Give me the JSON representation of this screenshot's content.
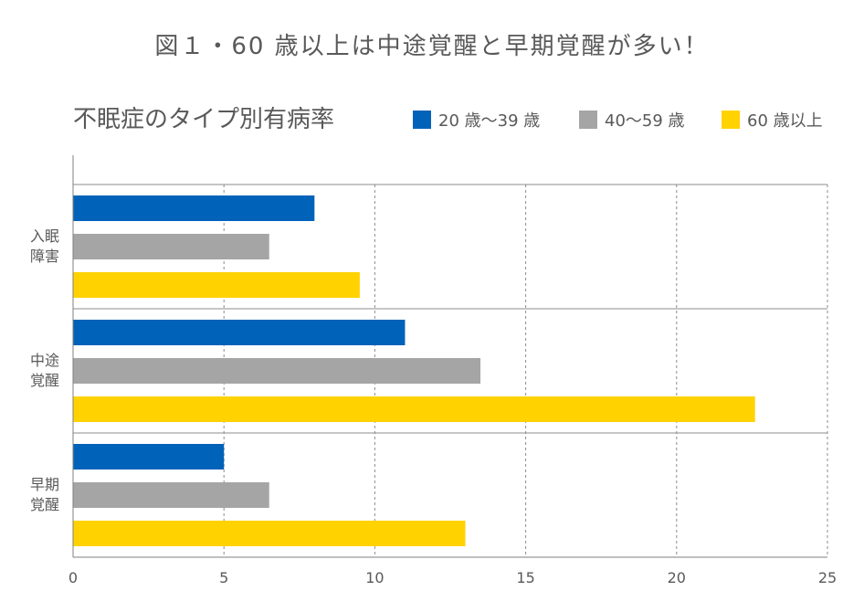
{
  "figure_title": "図１・60 歳以上は中途覚醒と早期覚醒が多い！",
  "chart_data": {
    "type": "bar",
    "orientation": "horizontal",
    "title": "不眠症のタイプ別有病率",
    "categories": [
      [
        "入眠",
        "障害"
      ],
      [
        "中途",
        "覚醒"
      ],
      [
        "早期",
        "覚醒"
      ]
    ],
    "series": [
      {
        "name": "20 歳〜39 歳",
        "color": "#0062B8",
        "values": [
          8,
          11,
          5
        ]
      },
      {
        "name": "40〜59 歳",
        "color": "#A5A5A5",
        "values": [
          6.5,
          13.5,
          6.5
        ]
      },
      {
        "name": "60 歳以上",
        "color": "#FFD200",
        "values": [
          9.5,
          22.6,
          13
        ]
      }
    ],
    "xlim": [
      0,
      25
    ],
    "xticks": [
      "0",
      "5",
      "10",
      "15",
      "20",
      "25"
    ],
    "grid": "vertical-dashed",
    "legend_position": "top-right"
  }
}
